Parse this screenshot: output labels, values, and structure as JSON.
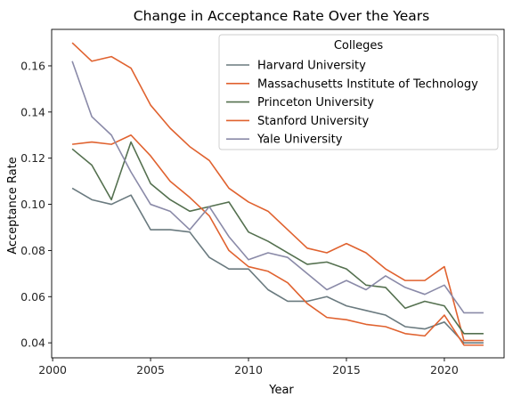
{
  "chart_data": {
    "type": "line",
    "title": "Change in Acceptance Rate Over the Years",
    "xlabel": "Year",
    "ylabel": "Acceptance Rate",
    "xlim": [
      1999.95,
      2023.05
    ],
    "ylim": [
      0.0335,
      0.1758
    ],
    "x_ticks": [
      2000,
      2005,
      2010,
      2015,
      2020
    ],
    "y_ticks": [
      0.04,
      0.06,
      0.08,
      0.1,
      0.12,
      0.14,
      0.16
    ],
    "grid": false,
    "legend": {
      "title": "Colleges",
      "placement": "top-right"
    },
    "x": [
      2001,
      2002,
      2003,
      2004,
      2005,
      2006,
      2007,
      2008,
      2009,
      2010,
      2011,
      2012,
      2013,
      2014,
      2015,
      2016,
      2017,
      2018,
      2019,
      2020,
      2021,
      2022
    ],
    "series": [
      {
        "name": "Harvard University",
        "color": "#6a7a7f",
        "values": [
          0.107,
          0.102,
          0.1,
          0.104,
          0.089,
          0.089,
          0.088,
          0.077,
          0.072,
          0.072,
          0.063,
          0.058,
          0.058,
          0.06,
          0.056,
          0.054,
          0.052,
          0.047,
          0.046,
          0.049,
          0.04,
          0.04
        ]
      },
      {
        "name": "Massachusetts Institute of Technology",
        "color": "#e0622f",
        "values": [
          0.17,
          0.162,
          0.164,
          0.159,
          0.143,
          0.133,
          0.125,
          0.119,
          0.107,
          0.101,
          0.097,
          0.089,
          0.081,
          0.079,
          0.083,
          0.079,
          0.072,
          0.067,
          0.067,
          0.073,
          0.041,
          0.041
        ]
      },
      {
        "name": "Princeton University",
        "color": "#54704f",
        "values": [
          0.124,
          0.117,
          0.102,
          0.127,
          0.109,
          0.102,
          0.097,
          0.099,
          0.101,
          0.088,
          0.084,
          0.079,
          0.074,
          0.075,
          0.072,
          0.065,
          0.064,
          0.055,
          0.058,
          0.056,
          0.044,
          0.044
        ]
      },
      {
        "name": "Stanford University",
        "color": "#e0622f",
        "values": [
          0.126,
          0.127,
          0.126,
          0.13,
          0.121,
          0.11,
          0.103,
          0.095,
          0.08,
          0.073,
          0.071,
          0.066,
          0.057,
          0.051,
          0.05,
          0.048,
          0.047,
          0.044,
          0.043,
          0.052,
          0.039,
          0.039
        ]
      },
      {
        "name": "Yale University",
        "color": "#8a8aa8",
        "values": [
          0.162,
          0.138,
          0.13,
          0.114,
          0.1,
          0.097,
          0.089,
          0.099,
          0.086,
          0.076,
          0.079,
          0.077,
          0.07,
          0.063,
          0.067,
          0.063,
          0.069,
          0.064,
          0.061,
          0.065,
          0.053,
          0.053
        ]
      }
    ]
  }
}
